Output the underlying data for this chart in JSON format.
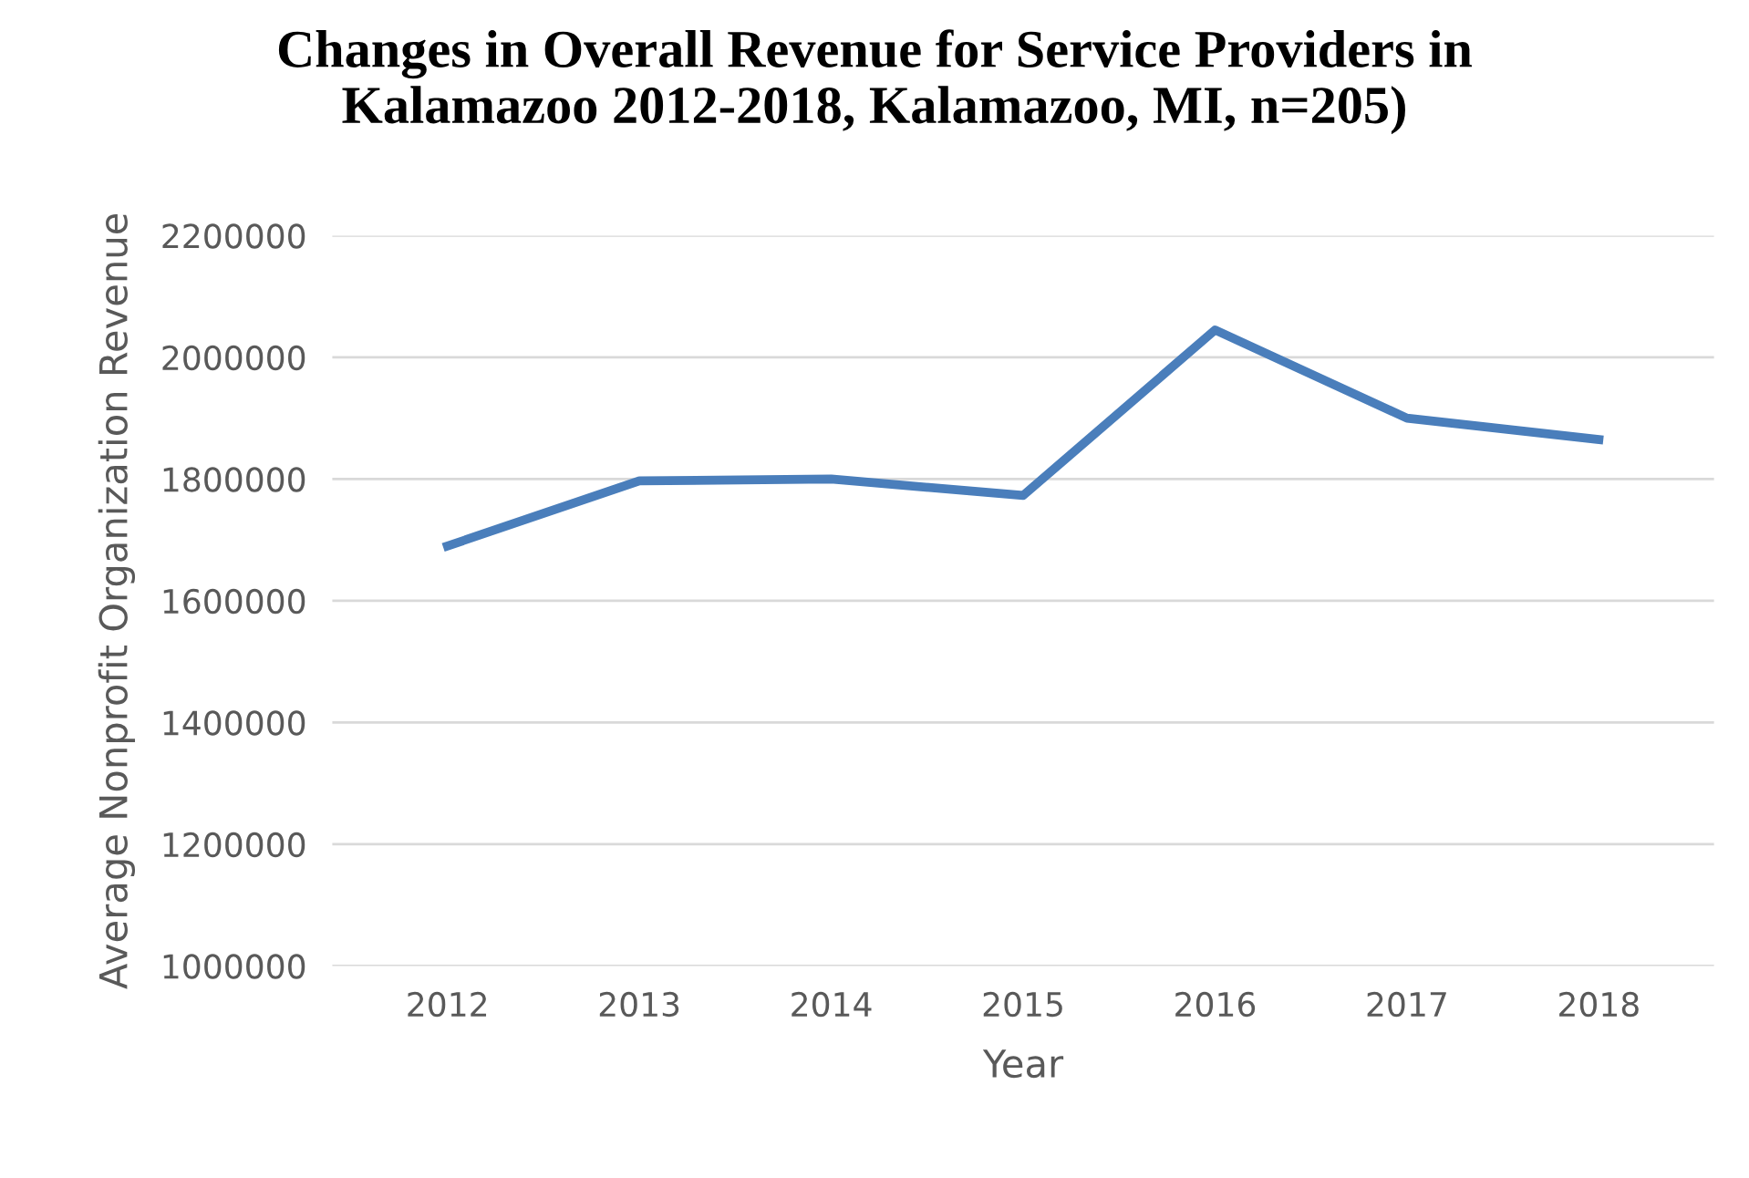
{
  "chart_data": {
    "type": "line",
    "title": "Changes in Overall Revenue for Service Providers in\nKalamazoo 2012-2018, Kalamazoo, MI, n=205)",
    "xlabel": "Year",
    "ylabel": "Average Nonprofit Organization Revenue",
    "categories": [
      "2012",
      "2013",
      "2014",
      "2015",
      "2016",
      "2017",
      "2018"
    ],
    "series": [
      {
        "color": "#4a7ebb",
        "values": [
          1690000,
          1797000,
          1800000,
          1773000,
          2045000,
          1900000,
          1865000
        ]
      }
    ],
    "ylim": [
      1000000,
      2200000
    ],
    "yticks": [
      1000000,
      1200000,
      1400000,
      1600000,
      1800000,
      2000000,
      2200000
    ],
    "grid": "y",
    "marker": "none",
    "line_style": "solid"
  }
}
